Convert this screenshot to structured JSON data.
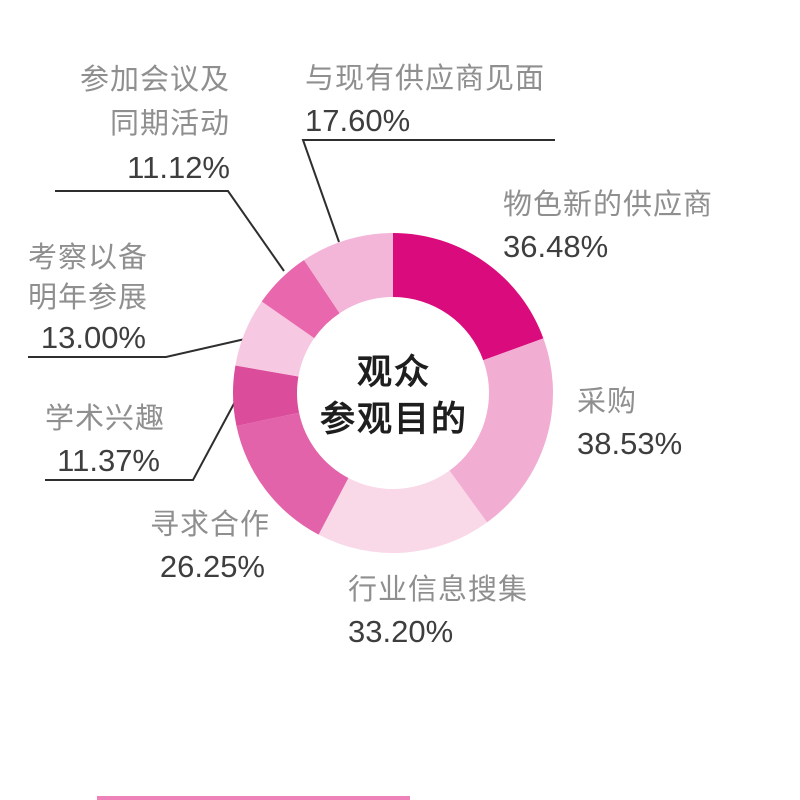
{
  "chart_data": {
    "type": "pie",
    "subtype": "donut",
    "title": "观众参观目的",
    "title_lines": [
      "观众",
      "参观目的"
    ],
    "unit": "%",
    "legend_position": "none",
    "categories": [
      "物色新的供应商",
      "采购",
      "行业信息搜集",
      "寻求合作",
      "学术兴趣",
      "考察以备明年参展",
      "参加会议及同期活动",
      "与现有供应商见面"
    ],
    "values": [
      36.48,
      38.53,
      33.2,
      26.25,
      11.37,
      13.0,
      11.12,
      17.6
    ],
    "series": [
      {
        "id": "new-supplier",
        "label": "物色新的供应商",
        "value": 36.48,
        "display": "36.48%",
        "color": "#da0c7d"
      },
      {
        "id": "procurement",
        "label": "采购",
        "value": 38.53,
        "display": "38.53%",
        "color": "#f2add3"
      },
      {
        "id": "industry-info",
        "label": "行业信息搜集",
        "value": 33.2,
        "display": "33.20%",
        "color": "#f9d8e8"
      },
      {
        "id": "cooperation",
        "label": "寻求合作",
        "value": 26.25,
        "display": "26.25%",
        "color": "#e263a9"
      },
      {
        "id": "academic",
        "label": "学术兴趣",
        "value": 11.37,
        "display": "11.37%",
        "color": "#db4c9b"
      },
      {
        "id": "inspection",
        "label": "考察以备明年参展",
        "value": 13.0,
        "display": "13.00%",
        "color": "#f6c8e1"
      },
      {
        "id": "conference",
        "label": "参加会议及同期活动",
        "value": 11.12,
        "display": "11.12%",
        "color": "#e967ac"
      },
      {
        "id": "existing-supplier",
        "label": "与现有供应商见面",
        "value": 17.6,
        "display": "17.60%",
        "color": "#f3b5d8"
      }
    ],
    "note": "segment angles proportional to values; multi-response percentages sum to 187.55%, chart starts at 12 o'clock clockwise"
  },
  "labels": {
    "conference": {
      "lines": [
        "参加会议及",
        "同期活动"
      ],
      "pct": "11.12%"
    },
    "existing_supplier": {
      "lines": [
        "与现有供应商见面"
      ],
      "pct": "17.60%"
    },
    "new_supplier": {
      "lines": [
        "物色新的供应商"
      ],
      "pct": "36.48%"
    },
    "procurement": {
      "lines": [
        "采购"
      ],
      "pct": "38.53%"
    },
    "industry_info": {
      "lines": [
        "行业信息搜集"
      ],
      "pct": "33.20%"
    },
    "cooperation": {
      "lines": [
        "寻求合作"
      ],
      "pct": "26.25%"
    },
    "inspection": {
      "lines": [
        "考察以备",
        "明年参展"
      ],
      "pct": "13.00%"
    },
    "academic": {
      "lines": [
        "学术兴趣"
      ],
      "pct": "11.37%"
    }
  },
  "colors": {
    "leader_line": "#2e2e2e",
    "label_text": "#8f8f8f",
    "pct_text": "#3e3e3e",
    "center_text": "#1e1e1e",
    "accent": "#da0c7d"
  }
}
